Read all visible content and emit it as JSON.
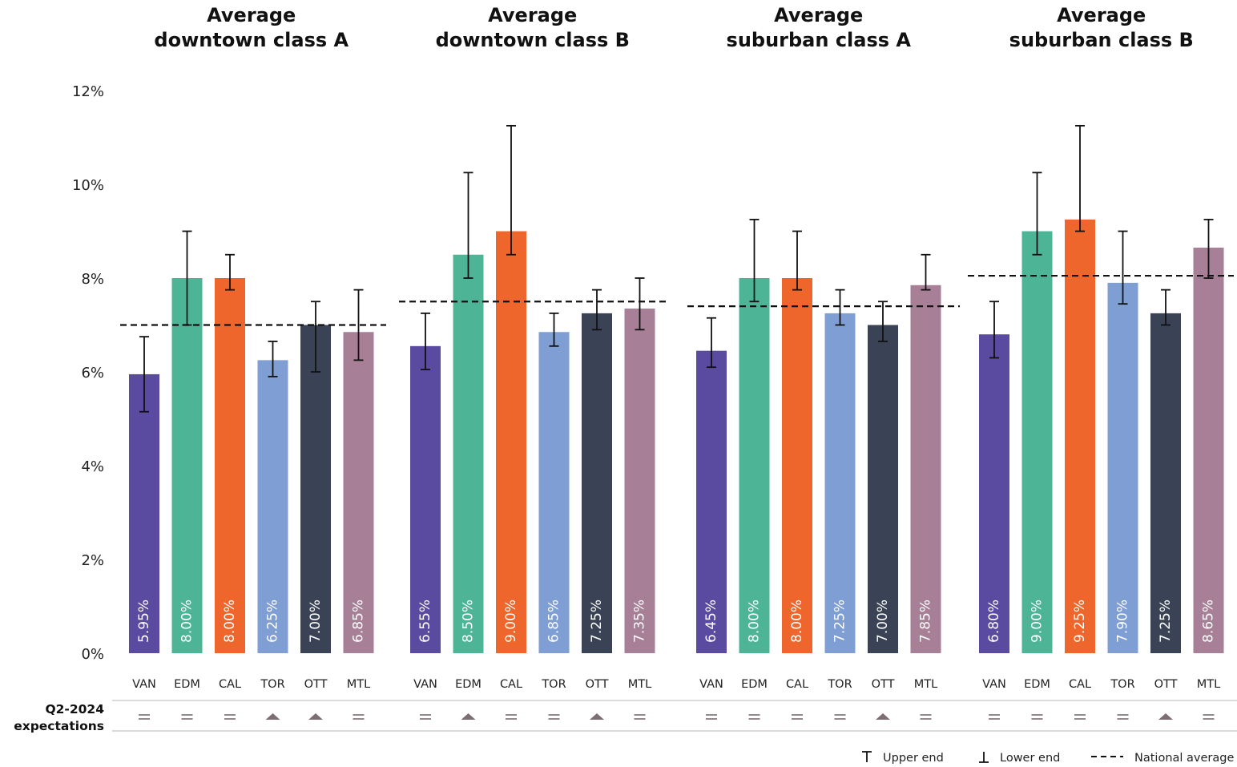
{
  "chart_data": {
    "type": "bar",
    "ylim": [
      0,
      12
    ],
    "yticks": [
      "0%",
      "2%",
      "4%",
      "6%",
      "8%",
      "10%",
      "12%"
    ],
    "categories": [
      "VAN",
      "EDM",
      "CAL",
      "TOR",
      "OTT",
      "MTL"
    ],
    "colors": {
      "VAN": "#5a4aa0",
      "EDM": "#4db596",
      "CAL": "#ee662b",
      "TOR": "#7f9ed4",
      "OTT": "#3a4355",
      "MTL": "#a77f97"
    },
    "panels": [
      {
        "title": [
          "Average",
          "downtown class A"
        ],
        "values": [
          5.95,
          8.0,
          8.0,
          6.25,
          7.0,
          6.85
        ],
        "labels": [
          "5.95%",
          "8.00%",
          "8.00%",
          "6.25%",
          "7.00%",
          "6.85%"
        ],
        "upper": [
          6.75,
          9.0,
          8.5,
          6.65,
          7.5,
          7.75
        ],
        "lower": [
          5.15,
          7.0,
          7.75,
          5.9,
          6.0,
          6.25
        ],
        "national_average": 7.0,
        "expectations": [
          "=",
          "=",
          "=",
          "up",
          "up",
          "="
        ]
      },
      {
        "title": [
          "Average",
          "downtown class B"
        ],
        "values": [
          6.55,
          8.5,
          9.0,
          6.85,
          7.25,
          7.35
        ],
        "labels": [
          "6.55%",
          "8.50%",
          "9.00%",
          "6.85%",
          "7.25%",
          "7.35%"
        ],
        "upper": [
          7.25,
          10.25,
          11.25,
          7.25,
          7.75,
          8.0
        ],
        "lower": [
          6.05,
          8.0,
          8.5,
          6.55,
          6.9,
          6.9
        ],
        "national_average": 7.5,
        "expectations": [
          "=",
          "up",
          "=",
          "=",
          "up",
          "="
        ]
      },
      {
        "title": [
          "Average",
          "suburban class A"
        ],
        "values": [
          6.45,
          8.0,
          8.0,
          7.25,
          7.0,
          7.85
        ],
        "labels": [
          "6.45%",
          "8.00%",
          "8.00%",
          "7.25%",
          "7.00%",
          "7.85%"
        ],
        "upper": [
          7.15,
          9.25,
          9.0,
          7.75,
          7.5,
          8.5
        ],
        "lower": [
          6.1,
          7.5,
          7.75,
          7.0,
          6.65,
          7.75
        ],
        "national_average": 7.4,
        "expectations": [
          "=",
          "=",
          "=",
          "=",
          "up",
          "="
        ]
      },
      {
        "title": [
          "Average",
          "suburban class B"
        ],
        "values": [
          6.8,
          9.0,
          9.25,
          7.9,
          7.25,
          8.65
        ],
        "labels": [
          "6.80%",
          "9.00%",
          "9.25%",
          "7.90%",
          "7.25%",
          "8.65%"
        ],
        "upper": [
          7.5,
          10.25,
          11.25,
          9.0,
          7.75,
          9.25
        ],
        "lower": [
          6.3,
          8.5,
          9.0,
          7.45,
          7.0,
          8.0
        ],
        "national_average": 8.05,
        "expectations": [
          "=",
          "=",
          "=",
          "=",
          "up",
          "="
        ]
      }
    ],
    "expectations_label": [
      "Q2-2024",
      "expectations"
    ],
    "legend": {
      "upper": "Upper end",
      "lower": "Lower end",
      "national": "National average"
    },
    "grid": false
  }
}
